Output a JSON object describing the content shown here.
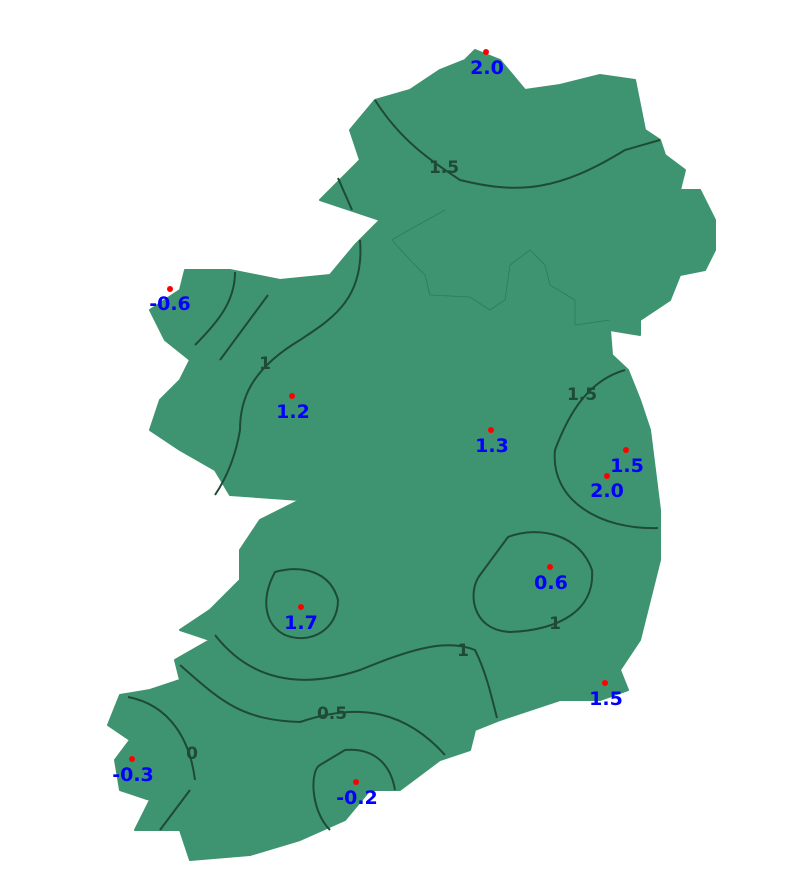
{
  "map": {
    "land_color": "#3e9470",
    "contour_color": "#1e4a36",
    "station_label_color": "#0000ff",
    "station_marker_color": "#ff0000"
  },
  "contour_labels": [
    "1.5",
    "1",
    "1.5",
    "1",
    "1",
    "0.5",
    "0"
  ],
  "stations": [
    {
      "value": "2.0"
    },
    {
      "value": "-0.6"
    },
    {
      "value": "1.2"
    },
    {
      "value": "1.3"
    },
    {
      "value": "1.5"
    },
    {
      "value": "2.0"
    },
    {
      "value": "0.6"
    },
    {
      "value": "1.7"
    },
    {
      "value": "1.5"
    },
    {
      "value": "-0.3"
    },
    {
      "value": "-0.2"
    }
  ]
}
